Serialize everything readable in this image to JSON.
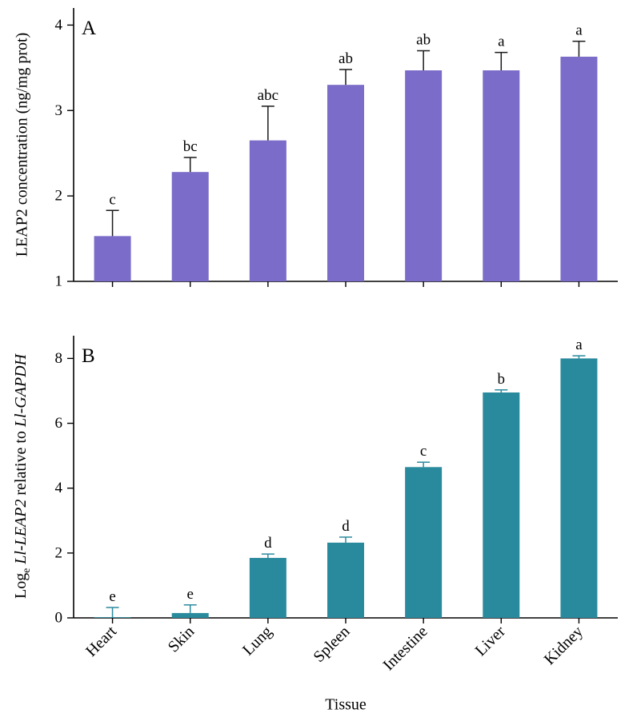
{
  "figure": {
    "panelA_label": "A",
    "panelB_label": "B",
    "xlabel": "Tissue",
    "panelA_ylabel": "LEAP2 concentration (ng/mg prot)",
    "panelB_ylabel": {
      "prefix": "Log",
      "sub": "e",
      "gene": " Ll-LEAP2",
      "mid": " relative to ",
      "ref": "Ll-GAPDH"
    }
  },
  "chart_data": [
    {
      "type": "bar",
      "panel": "A",
      "title": "",
      "xlabel": "Tissue",
      "ylabel": "LEAP2 concentration (ng/mg prot)",
      "categories": [
        "Heart",
        "Skin",
        "Lung",
        "Spleen",
        "Intestine",
        "Liver",
        "Kidney"
      ],
      "values": [
        1.53,
        2.28,
        2.65,
        3.3,
        3.47,
        3.47,
        3.63
      ],
      "errors_upper": [
        0.3,
        0.17,
        0.4,
        0.18,
        0.23,
        0.21,
        0.18
      ],
      "sig_letters": [
        "c",
        "bc",
        "abc",
        "ab",
        "ab",
        "a",
        "a"
      ],
      "ylim": [
        1,
        4.2
      ],
      "yticks": [
        1,
        2,
        3,
        4
      ],
      "bar_color": "#7a6cc8",
      "error_color": "#1a1a1a",
      "grid": false,
      "legend": "none"
    },
    {
      "type": "bar",
      "panel": "B",
      "title": "",
      "xlabel": "Tissue",
      "ylabel": "Loge Ll-LEAP2 relative to Ll-GAPDH",
      "categories": [
        "Heart",
        "Skin",
        "Lung",
        "Spleen",
        "Intestine",
        "Liver",
        "Kidney"
      ],
      "values": [
        0.02,
        0.15,
        1.85,
        2.32,
        4.65,
        6.95,
        8.0
      ],
      "errors_upper": [
        0.3,
        0.25,
        0.12,
        0.17,
        0.15,
        0.08,
        0.08
      ],
      "sig_letters": [
        "e",
        "e",
        "d",
        "d",
        "c",
        "b",
        "a"
      ],
      "ylim": [
        0,
        8.7
      ],
      "yticks": [
        0,
        2,
        4,
        6,
        8
      ],
      "bar_color": "#2a8a9d",
      "error_color": "#2a8a9d",
      "grid": false,
      "legend": "none"
    }
  ]
}
